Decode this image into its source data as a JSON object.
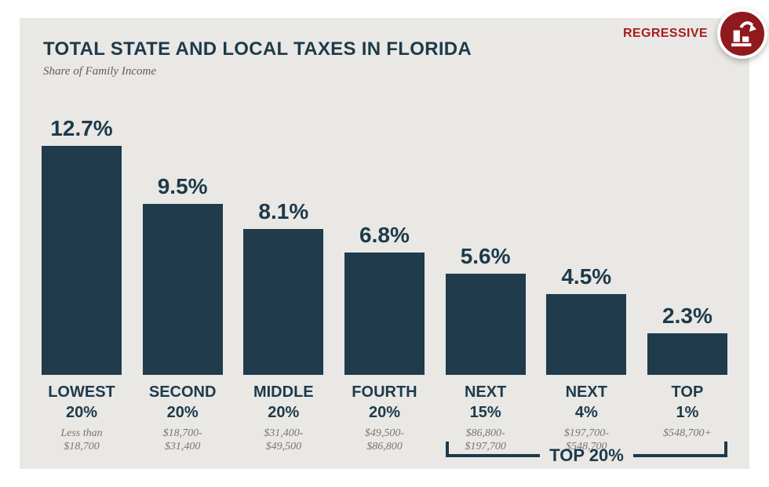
{
  "header": {
    "title": "TOTAL STATE AND LOCAL TAXES IN FLORIDA",
    "subtitle": "Share of Family Income"
  },
  "badge": {
    "label": "REGRESSIVE",
    "icon": "declining-bar-chart-icon"
  },
  "colors": {
    "navy": "#1d3a4a",
    "bar": "#1f3b4c",
    "card_bg": "#e9e8e5",
    "red_text": "#a51e22",
    "circle_red": "#8f191d",
    "gray_text": "#77766f"
  },
  "chart_data": {
    "type": "bar",
    "title": "TOTAL STATE AND LOCAL TAXES IN FLORIDA",
    "subtitle": "Share of Family Income",
    "unit": "percent of family income",
    "ylim": [
      0,
      13
    ],
    "grid": false,
    "legend": "none",
    "categories": [
      "LOWEST 20%",
      "SECOND 20%",
      "MIDDLE 20%",
      "FOURTH 20%",
      "NEXT 15%",
      "NEXT 4%",
      "TOP 1%"
    ],
    "values": [
      12.7,
      9.5,
      8.1,
      6.8,
      5.6,
      4.5,
      2.3
    ],
    "groups": [
      {
        "name": "LOWEST",
        "pct": "20%",
        "value": 12.7,
        "label": "12.7%",
        "range_line1": "Less than",
        "range_line2": "$18,700"
      },
      {
        "name": "SECOND",
        "pct": "20%",
        "value": 9.5,
        "label": "9.5%",
        "range_line1": "$18,700-",
        "range_line2": "$31,400"
      },
      {
        "name": "MIDDLE",
        "pct": "20%",
        "value": 8.1,
        "label": "8.1%",
        "range_line1": "$31,400-",
        "range_line2": "$49,500"
      },
      {
        "name": "FOURTH",
        "pct": "20%",
        "value": 6.8,
        "label": "6.8%",
        "range_line1": "$49,500-",
        "range_line2": "$86,800"
      },
      {
        "name": "NEXT",
        "pct": "15%",
        "value": 5.6,
        "label": "5.6%",
        "range_line1": "$86,800-",
        "range_line2": "$197,700"
      },
      {
        "name": "NEXT",
        "pct": "4%",
        "value": 4.5,
        "label": "4.5%",
        "range_line1": "$197,700-",
        "range_line2": "$548,700"
      },
      {
        "name": "TOP",
        "pct": "1%",
        "value": 2.3,
        "label": "2.3%",
        "range_line1": "$548,700+",
        "range_line2": ""
      }
    ],
    "annotation": {
      "text": "TOP 20%",
      "spans": [
        "NEXT 15%",
        "NEXT 4%",
        "TOP 1%"
      ]
    }
  }
}
